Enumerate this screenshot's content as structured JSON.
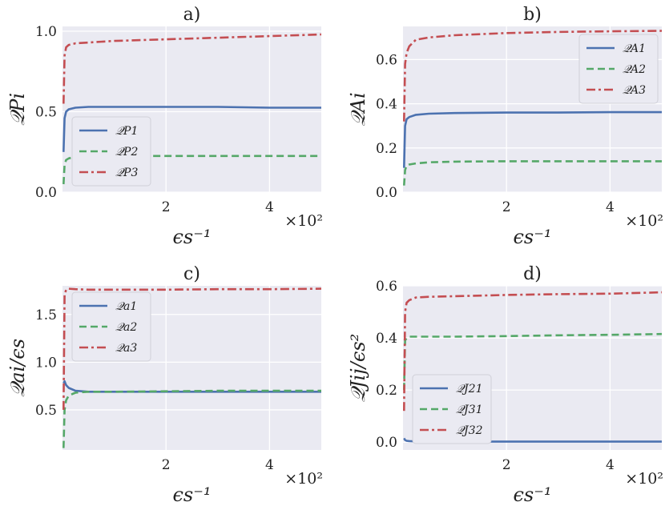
{
  "chart_data": [
    {
      "type": "line",
      "title": "a)",
      "xlabel": "ϵs⁻¹",
      "ylabel": "𝒬Pi",
      "x_multiplier": "×10²",
      "xlim": [
        0,
        5
      ],
      "ylim": [
        0,
        1.03
      ],
      "xticks": [
        2,
        4
      ],
      "xtick_labels": [
        "2",
        "4"
      ],
      "yticks": [
        0,
        0.5,
        1.0
      ],
      "ytick_labels": [
        "0.0",
        "0.5",
        "1.0"
      ],
      "legend_position": "lower-left",
      "series": [
        {
          "name": "𝒬P1",
          "color": "#4c72b0",
          "style": "solid",
          "x": [
            0.02,
            0.04,
            0.07,
            0.12,
            0.25,
            0.5,
            1,
            2,
            3,
            4,
            5
          ],
          "values": [
            0.25,
            0.46,
            0.5,
            0.515,
            0.525,
            0.53,
            0.53,
            0.53,
            0.53,
            0.525,
            0.525
          ]
        },
        {
          "name": "𝒬P2",
          "color": "#55a868",
          "style": "dashed",
          "x": [
            0.02,
            0.04,
            0.07,
            0.12,
            0.25,
            0.5,
            1,
            2,
            3,
            4,
            5
          ],
          "values": [
            0.05,
            0.17,
            0.2,
            0.21,
            0.22,
            0.225,
            0.225,
            0.225,
            0.225,
            0.225,
            0.225
          ]
        },
        {
          "name": "𝒬P3",
          "color": "#c44e52",
          "style": "dashdot",
          "x": [
            0.02,
            0.04,
            0.07,
            0.12,
            0.25,
            0.5,
            1,
            2,
            3,
            4,
            5
          ],
          "values": [
            0.55,
            0.85,
            0.9,
            0.915,
            0.925,
            0.93,
            0.94,
            0.95,
            0.96,
            0.97,
            0.98
          ]
        }
      ]
    },
    {
      "type": "line",
      "title": "b)",
      "xlabel": "ϵs⁻¹",
      "ylabel": "𝒬Ai",
      "x_multiplier": "×10²",
      "xlim": [
        0,
        5
      ],
      "ylim": [
        0,
        0.75
      ],
      "xticks": [
        2,
        4
      ],
      "xtick_labels": [
        "2",
        "4"
      ],
      "yticks": [
        0,
        0.2,
        0.4,
        0.6
      ],
      "ytick_labels": [
        "0.0",
        "0.2",
        "0.4",
        "0.6"
      ],
      "legend_position": "top-right",
      "series": [
        {
          "name": "𝒬A1",
          "color": "#4c72b0",
          "style": "solid",
          "x": [
            0.02,
            0.04,
            0.07,
            0.12,
            0.25,
            0.5,
            1,
            2,
            3,
            4,
            5
          ],
          "values": [
            0.11,
            0.3,
            0.33,
            0.34,
            0.35,
            0.355,
            0.358,
            0.36,
            0.36,
            0.362,
            0.362
          ]
        },
        {
          "name": "𝒬A2",
          "color": "#55a868",
          "style": "dashed",
          "x": [
            0.02,
            0.04,
            0.07,
            0.12,
            0.25,
            0.5,
            1,
            2,
            3,
            4,
            5
          ],
          "values": [
            0.03,
            0.1,
            0.12,
            0.125,
            0.13,
            0.135,
            0.138,
            0.14,
            0.14,
            0.14,
            0.14
          ]
        },
        {
          "name": "𝒬A3",
          "color": "#c44e52",
          "style": "dashdot",
          "x": [
            0.02,
            0.04,
            0.07,
            0.12,
            0.25,
            0.5,
            1,
            2,
            3,
            4,
            5
          ],
          "values": [
            0.32,
            0.58,
            0.63,
            0.66,
            0.69,
            0.7,
            0.71,
            0.72,
            0.725,
            0.728,
            0.73
          ]
        }
      ]
    },
    {
      "type": "line",
      "title": "c)",
      "xlabel": "ϵs⁻¹",
      "ylabel": "𝒬ai/ϵs",
      "x_multiplier": "×10²",
      "xlim": [
        0,
        5
      ],
      "ylim": [
        0.08,
        1.8
      ],
      "xticks": [
        2,
        4
      ],
      "xtick_labels": [
        "2",
        "4"
      ],
      "yticks": [
        0.5,
        1.0,
        1.5
      ],
      "ytick_labels": [
        "0.5",
        "1.0",
        "1.5"
      ],
      "legend_position": "top-left",
      "series": [
        {
          "name": "𝒬a1",
          "color": "#4c72b0",
          "style": "solid",
          "x": [
            0.02,
            0.04,
            0.07,
            0.12,
            0.25,
            0.5,
            1,
            2,
            3,
            4,
            5
          ],
          "values": [
            0.78,
            0.8,
            0.76,
            0.73,
            0.7,
            0.69,
            0.69,
            0.69,
            0.69,
            0.69,
            0.69
          ]
        },
        {
          "name": "𝒬a2",
          "color": "#55a868",
          "style": "dashed",
          "x": [
            0.02,
            0.04,
            0.07,
            0.12,
            0.25,
            0.5,
            1,
            2,
            3,
            4,
            5
          ],
          "values": [
            0.1,
            0.5,
            0.6,
            0.65,
            0.68,
            0.69,
            0.69,
            0.695,
            0.7,
            0.7,
            0.7
          ]
        },
        {
          "name": "𝒬a3",
          "color": "#c44e52",
          "style": "dashdot",
          "x": [
            0.02,
            0.04,
            0.07,
            0.12,
            0.25,
            0.5,
            1,
            2,
            3,
            4,
            5
          ],
          "values": [
            0.5,
            1.7,
            1.76,
            1.77,
            1.765,
            1.76,
            1.76,
            1.76,
            1.765,
            1.765,
            1.77
          ]
        }
      ]
    },
    {
      "type": "line",
      "title": "d)",
      "xlabel": "ϵs⁻¹",
      "ylabel": "𝒬Jij/ϵs²",
      "x_multiplier": "×10²",
      "xlim": [
        0,
        5
      ],
      "ylim": [
        -0.03,
        0.6
      ],
      "xticks": [
        2,
        4
      ],
      "xtick_labels": [
        "2",
        "4"
      ],
      "yticks": [
        0,
        0.2,
        0.4,
        0.6
      ],
      "ytick_labels": [
        "0.0",
        "0.2",
        "0.4",
        "0.6"
      ],
      "legend_position": "lower-left",
      "series": [
        {
          "name": "𝒬J21",
          "color": "#4c72b0",
          "style": "solid",
          "x": [
            0.02,
            0.04,
            0.07,
            0.12,
            0.25,
            0.5,
            1,
            2,
            3,
            4,
            5
          ],
          "values": [
            0.015,
            0.008,
            0.005,
            0.004,
            0.003,
            0.003,
            0.002,
            0.002,
            0.002,
            0.002,
            0.002
          ]
        },
        {
          "name": "𝒬J31",
          "color": "#55a868",
          "style": "dashed",
          "x": [
            0.02,
            0.04,
            0.07,
            0.12,
            0.25,
            0.5,
            1,
            2,
            3,
            4,
            5
          ],
          "values": [
            0.2,
            0.39,
            0.4,
            0.405,
            0.405,
            0.405,
            0.405,
            0.407,
            0.41,
            0.412,
            0.415
          ]
        },
        {
          "name": "𝒬J32",
          "color": "#c44e52",
          "style": "dashdot",
          "x": [
            0.02,
            0.04,
            0.07,
            0.12,
            0.25,
            0.5,
            1,
            2,
            3,
            4,
            5
          ],
          "values": [
            0.12,
            0.5,
            0.535,
            0.545,
            0.555,
            0.558,
            0.56,
            0.565,
            0.568,
            0.57,
            0.575
          ]
        }
      ]
    }
  ]
}
